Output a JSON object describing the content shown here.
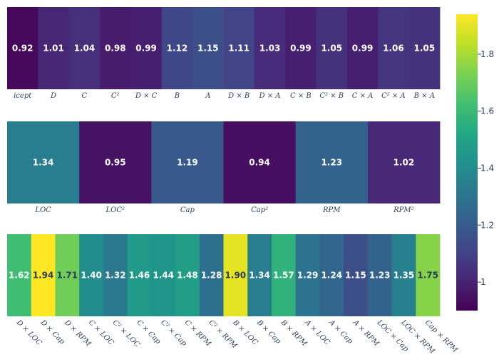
{
  "chart_data": {
    "type": "heatmap",
    "colorscale": "viridis",
    "zmin": 0.9,
    "zmax": 1.94,
    "colorbar": {
      "ticks": [
        1,
        1.2,
        1.4,
        1.6,
        1.8
      ],
      "tick_labels": [
        "1",
        "1.2",
        "1.4",
        "1.6",
        "1.8"
      ]
    },
    "panels": [
      {
        "categories": [
          "icept",
          "D",
          "C",
          "C²",
          "D × C",
          "B",
          "A",
          "D × B",
          "D × A",
          "C × B",
          "C² × B",
          "C × A",
          "C² × A",
          "B × A"
        ],
        "values": [
          0.92,
          1.01,
          1.04,
          0.98,
          0.99,
          1.12,
          1.15,
          1.11,
          1.03,
          0.99,
          1.05,
          0.99,
          1.06,
          1.05
        ],
        "labels": [
          "0.92",
          "1.01",
          "1.04",
          "0.98",
          "0.99",
          "1.12",
          "1.15",
          "1.11",
          "1.03",
          "0.99",
          "1.05",
          "0.99",
          "1.06",
          "1.05"
        ]
      },
      {
        "categories": [
          "LOC",
          "LOC²",
          "Cap",
          "Cap²",
          "RPM",
          "RPM²"
        ],
        "values": [
          1.34,
          0.95,
          1.19,
          0.94,
          1.23,
          1.02
        ],
        "labels": [
          "1.34",
          "0.95",
          "1.19",
          "0.94",
          "1.23",
          "1.02"
        ]
      },
      {
        "categories": [
          "D × LOC",
          "D × Cap",
          "D × RPM",
          "C × LOC",
          "C² × LOC",
          "C × Cap",
          "C² × Cap",
          "C × RPM",
          "C² × RPM",
          "B × LOC",
          "B × Cap",
          "B × RPM",
          "A × LOC",
          "A × Cap",
          "A × RPM",
          "LOC × Cap",
          "LOC × RPM",
          "Cap × RPM"
        ],
        "values": [
          1.62,
          1.94,
          1.71,
          1.4,
          1.32,
          1.46,
          1.44,
          1.48,
          1.28,
          1.9,
          1.34,
          1.57,
          1.29,
          1.24,
          1.15,
          1.23,
          1.35,
          1.75
        ],
        "labels": [
          "1.62",
          "1.94",
          "1.71",
          "1.40",
          "1.32",
          "1.46",
          "1.44",
          "1.48",
          "1.28",
          "1.90",
          "1.34",
          "1.57",
          "1.29",
          "1.24",
          "1.15",
          "1.23",
          "1.35",
          "1.75"
        ]
      }
    ]
  }
}
